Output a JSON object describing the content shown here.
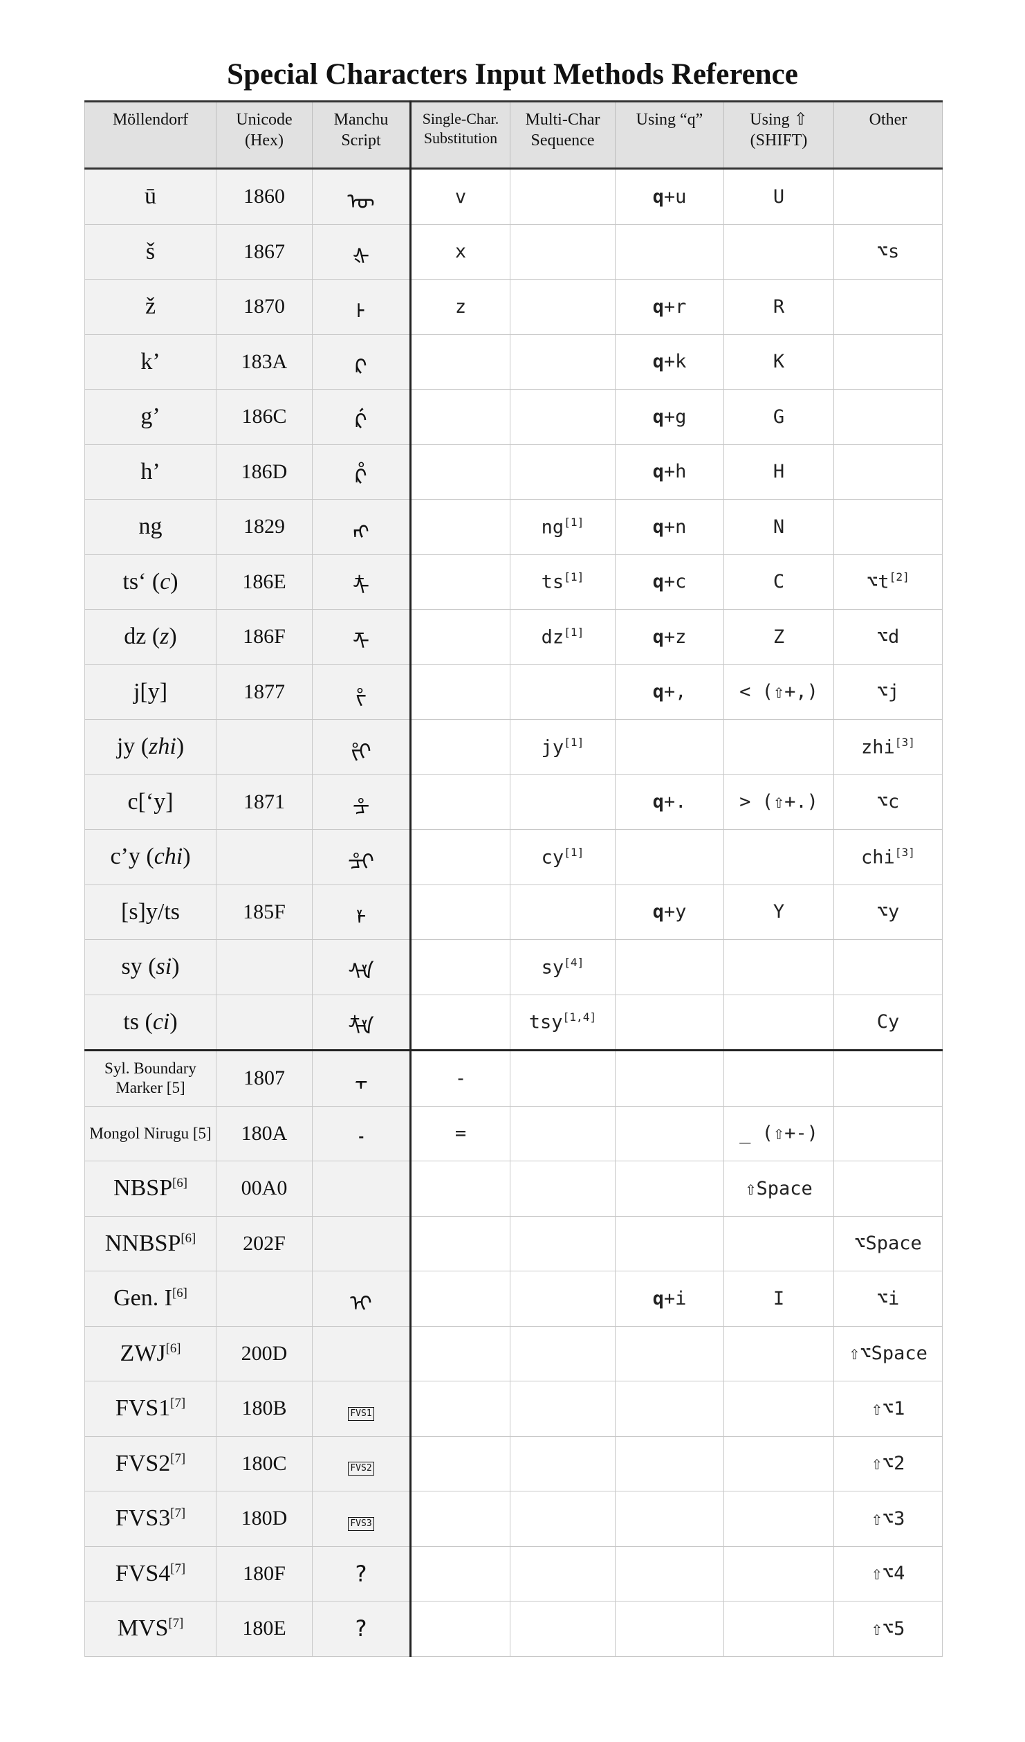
{
  "title": "Special Characters Input Methods Reference",
  "headers": {
    "mollendorf": "Möllendorf",
    "unicode_1": "Unicode",
    "unicode_2": "(Hex)",
    "script_1": "Manchu",
    "script_2": "Script",
    "single_1": "Single-Char.",
    "single_2": "Substitution",
    "multi_1": "Multi-Char",
    "multi_2": "Sequence",
    "q": "Using “q”",
    "shift_1": "Using ⇧",
    "shift_2": "(SHIFT)",
    "other": "Other"
  },
  "rows": [
    {
      "m": "ū",
      "u": "1860",
      "s": "ᡡ",
      "single": "v",
      "multi": "",
      "q_key": "q",
      "q_rest": "+u",
      "shift": "U",
      "other": ""
    },
    {
      "m": "š",
      "u": "1867",
      "s": "ᡧ",
      "single": "x",
      "multi": "",
      "q_key": "",
      "q_rest": "",
      "shift": "",
      "other": "⌥s"
    },
    {
      "m": "ž",
      "u": "1870",
      "s": "ᡰ",
      "single": "z",
      "multi": "",
      "q_key": "q",
      "q_rest": "+r",
      "shift": "R",
      "other": ""
    },
    {
      "m": "k’",
      "u": "183A",
      "s": "ᠺ",
      "single": "",
      "multi": "",
      "q_key": "q",
      "q_rest": "+k",
      "shift": "K",
      "other": ""
    },
    {
      "m": "g’",
      "u": "186C",
      "s": "ᡬ",
      "single": "",
      "multi": "",
      "q_key": "q",
      "q_rest": "+g",
      "shift": "G",
      "other": ""
    },
    {
      "m": "h’",
      "u": "186D",
      "s": "ᡭ",
      "single": "",
      "multi": "",
      "q_key": "q",
      "q_rest": "+h",
      "shift": "H",
      "other": ""
    },
    {
      "m": "ng",
      "u": "1829",
      "s": "ᠩ",
      "single": "",
      "multi": "ng",
      "multi_sup": "[1]",
      "q_key": "q",
      "q_rest": "+n",
      "shift": "N",
      "other": ""
    },
    {
      "m": "ts‘",
      "m_it": "c",
      "u": "186E",
      "s": "ᡮ",
      "single": "",
      "multi": "ts",
      "multi_sup": "[1]",
      "q_key": "q",
      "q_rest": "+c",
      "shift": "C",
      "other": "⌥t",
      "other_sup": "[2]"
    },
    {
      "m": "dz",
      "m_it": "z",
      "u": "186F",
      "s": "ᡯ",
      "single": "",
      "multi": "dz",
      "multi_sup": "[1]",
      "q_key": "q",
      "q_rest": "+z",
      "shift": "Z",
      "other": "⌥d"
    },
    {
      "m": "j[y]",
      "u": "1877",
      "s": "ᡷ",
      "single": "",
      "multi": "",
      "q_key": "q",
      "q_rest": "+,",
      "shift": "< (⇧+,)",
      "other": "⌥j"
    },
    {
      "m": "jy",
      "m_it": "zhi",
      "u": "",
      "s": "ᡷᡳ",
      "single": "",
      "multi": "jy",
      "multi_sup": "[1]",
      "q_key": "",
      "q_rest": "",
      "shift": "",
      "other": "zhi",
      "other_sup": "[3]"
    },
    {
      "m": "c[‘y]",
      "u": "1871",
      "s": "ᡱ",
      "single": "",
      "multi": "",
      "q_key": "q",
      "q_rest": "+.",
      "shift": "> (⇧+.)",
      "other": "⌥c"
    },
    {
      "m": "c’y",
      "m_it": "chi",
      "u": "",
      "s": "ᡱᡳ",
      "single": "",
      "multi": "cy",
      "multi_sup": "[1]",
      "q_key": "",
      "q_rest": "",
      "shift": "",
      "other": "chi",
      "other_sup": "[3]"
    },
    {
      "m": "[s]y/ts",
      "u": "185F",
      "s": "ᡟ",
      "single": "",
      "multi": "",
      "q_key": "q",
      "q_rest": "+y",
      "shift": "Y",
      "other": "⌥y"
    },
    {
      "m": "sy",
      "m_it": "si",
      "u": "",
      "s": "ᠰᡟ",
      "single": "",
      "multi": "sy",
      "multi_sup": "[4]",
      "q_key": "",
      "q_rest": "",
      "shift": "",
      "other": ""
    },
    {
      "m": "ts",
      "m_it": "ci",
      "u": "",
      "s": "ᡮᡟ",
      "single": "",
      "multi": "tsy",
      "multi_sup": "[1,4]",
      "q_key": "",
      "q_rest": "",
      "shift": "",
      "other": "Cy"
    },
    {
      "m": "Syl. Boundary Marker [5]",
      "u": "1807",
      "s": "᠇",
      "single": "-",
      "multi": "",
      "q_key": "",
      "q_rest": "",
      "shift": "",
      "other": ""
    },
    {
      "m": "Mongol Nirugu [5]",
      "u": "180A",
      "s": "᠊",
      "single": "=",
      "multi": "",
      "q_key": "",
      "q_rest": "",
      "shift": "_ (⇧+-)",
      "other": ""
    },
    {
      "m": "NBSP",
      "m_sup": "[6]",
      "u": "00A0",
      "s": "",
      "single": "",
      "multi": "",
      "q_key": "",
      "q_rest": "",
      "shift": "⇧Space",
      "other": ""
    },
    {
      "m": "NNBSP",
      "m_sup": "[6]",
      "u": "202F",
      "s": "",
      "single": "",
      "multi": "",
      "q_key": "",
      "q_rest": "",
      "shift": "",
      "other": "⌥Space"
    },
    {
      "m": "Gen. I",
      "m_sup": "[6]",
      "u": "",
      "s": "ᡳ",
      "single": "",
      "multi": "",
      "q_key": "q",
      "q_rest": "+i",
      "shift": "I",
      "other": "⌥i"
    },
    {
      "m": "ZWJ",
      "m_sup": "[6]",
      "u": "200D",
      "s": "",
      "single": "",
      "multi": "",
      "q_key": "",
      "q_rest": "",
      "shift": "",
      "other": "⇧⌥Space"
    },
    {
      "m": "FVS1",
      "m_sup": "[7]",
      "u": "180B",
      "s_box": "FVS1",
      "single": "",
      "multi": "",
      "q_key": "",
      "q_rest": "",
      "shift": "",
      "other": "⇧⌥1"
    },
    {
      "m": "FVS2",
      "m_sup": "[7]",
      "u": "180C",
      "s_box": "FVS2",
      "single": "",
      "multi": "",
      "q_key": "",
      "q_rest": "",
      "shift": "",
      "other": "⇧⌥2"
    },
    {
      "m": "FVS3",
      "m_sup": "[7]",
      "u": "180D",
      "s_box": "FVS3",
      "single": "",
      "multi": "",
      "q_key": "",
      "q_rest": "",
      "shift": "",
      "other": "⇧⌥3"
    },
    {
      "m": "FVS4",
      "m_sup": "[7]",
      "u": "180F",
      "s": "?",
      "single": "",
      "multi": "",
      "q_key": "",
      "q_rest": "",
      "shift": "",
      "other": "⇧⌥4"
    },
    {
      "m": "MVS",
      "m_sup": "[7]",
      "u": "180E",
      "s": "?",
      "single": "",
      "multi": "",
      "q_key": "",
      "q_rest": "",
      "shift": "",
      "other": "⇧⌥5"
    }
  ]
}
